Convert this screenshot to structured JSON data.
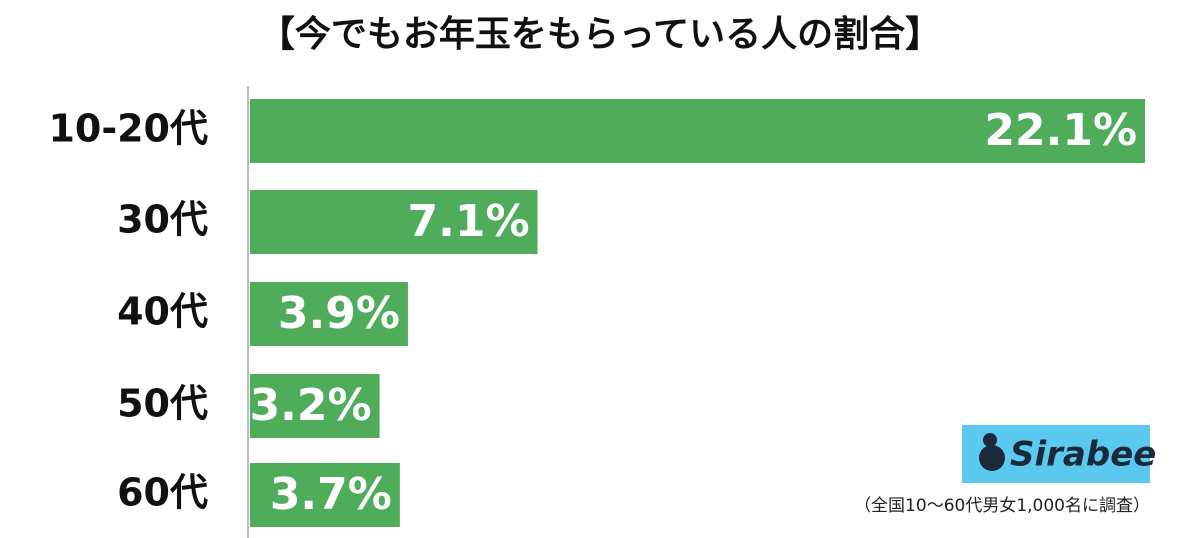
{
  "chart_data": {
    "type": "bar",
    "orientation": "horizontal",
    "title": "【今でもお年玉をもらっている人の割合】",
    "categories": [
      "10-20代",
      "30代",
      "40代",
      "50代",
      "60代"
    ],
    "values": [
      22.1,
      7.1,
      3.9,
      3.2,
      3.7
    ],
    "value_labels": [
      "22.1%",
      "7.1%",
      "3.9%",
      "3.2%",
      "3.7%"
    ],
    "color": "#4fac5b",
    "logo": "Sirabee",
    "note": "（全国10～60代男女1,000名に調査）"
  }
}
